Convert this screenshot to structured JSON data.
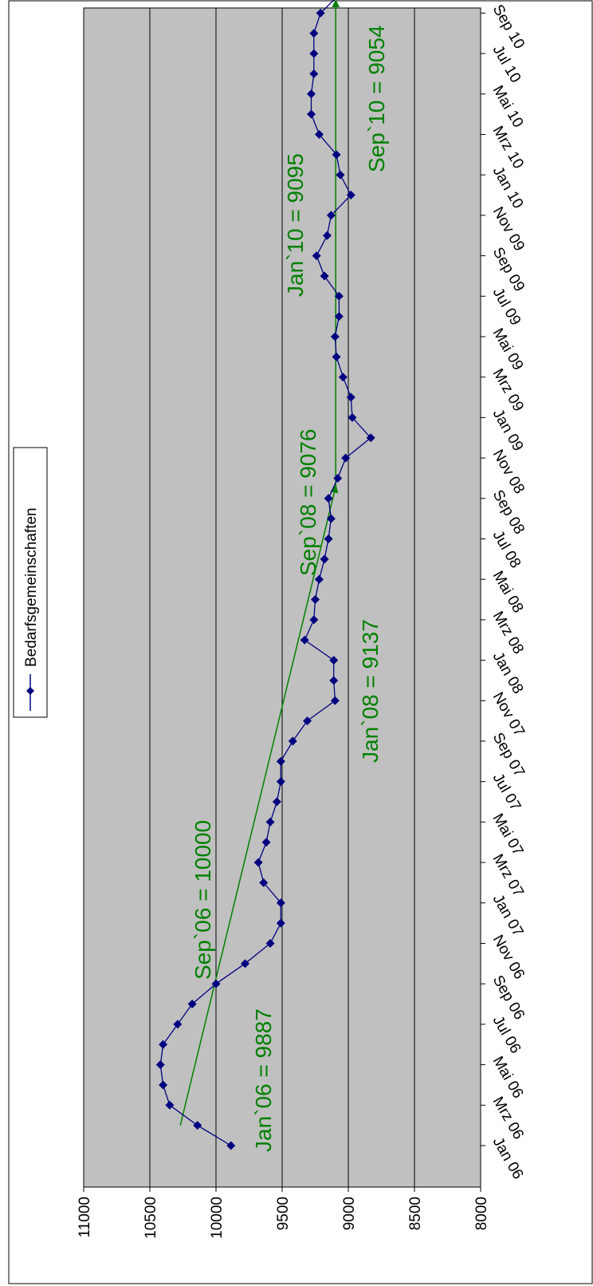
{
  "chart_data": {
    "type": "line",
    "orientation": "rotated 90deg clockwise",
    "legend": {
      "position": "top",
      "entries": [
        "Bedarfsgemeinschaften"
      ]
    },
    "grid": true,
    "ylim": [
      8000,
      11000
    ],
    "y_ticks": [
      8000,
      8500,
      9000,
      9500,
      10000,
      10500,
      11000
    ],
    "x_tick_labels": [
      "Jan 06",
      "Mrz 06",
      "Mai 06",
      "Jul 06",
      "Sep 06",
      "Nov 06",
      "Jan 07",
      "Mrz 07",
      "Mai 07",
      "Jul 07",
      "Sep 07",
      "Nov 07",
      "Jan 08",
      "Mrz 08",
      "Mai 08",
      "Jul 08",
      "Sep 08",
      "Nov 08",
      "Jan 09",
      "Mrz 09",
      "Mai 09",
      "Jul 09",
      "Sep 09",
      "Nov 09",
      "Jan 10",
      "Mrz 10",
      "Mai 10",
      "Jul 10",
      "Sep 10"
    ],
    "series": [
      {
        "name": "Bedarfsgemeinschaften",
        "color": "#000080",
        "marker": "diamond",
        "values": [
          9887,
          10140,
          10350,
          10400,
          10420,
          10400,
          10290,
          10180,
          10000,
          9780,
          9590,
          9510,
          9510,
          9640,
          9680,
          9620,
          9590,
          9540,
          9510,
          9510,
          9420,
          9310,
          9100,
          9110,
          9110,
          9330,
          9260,
          9250,
          9220,
          9180,
          9150,
          9130,
          9150,
          9080,
          9020,
          8830,
          8970,
          8980,
          9040,
          9090,
          9100,
          9070,
          9070,
          9180,
          9240,
          9160,
          9130,
          8980,
          9060,
          9090,
          9220,
          9280,
          9280,
          9260,
          9260,
          9260,
          9210,
          9054
        ]
      }
    ],
    "trend_lines": [
      {
        "color": "#008000",
        "from_index": 1,
        "to_index": 32.6,
        "from_value": 10270,
        "to_value": 9095,
        "arrow": true
      },
      {
        "color": "#008000",
        "from_index": 32.6,
        "to_index": 56.6,
        "from_value": 9095,
        "to_value": 9095,
        "arrow": true
      }
    ],
    "annotations": [
      {
        "text": "Jan`06 = 9887",
        "color": "#008000"
      },
      {
        "text": "Sep`06 = 10000",
        "color": "#008000"
      },
      {
        "text": "Jan`08 = 9137",
        "color": "#008000"
      },
      {
        "text": "Sep`08 = 9076",
        "color": "#008000"
      },
      {
        "text": "Jan`10 = 9095",
        "color": "#008000"
      },
      {
        "text": "Sep`10 = 9054",
        "color": "#008000"
      }
    ],
    "colors": {
      "plot_background": "#c0c0c0",
      "gridline": "#000000",
      "annotation": "#008000",
      "series": "#000080"
    }
  }
}
